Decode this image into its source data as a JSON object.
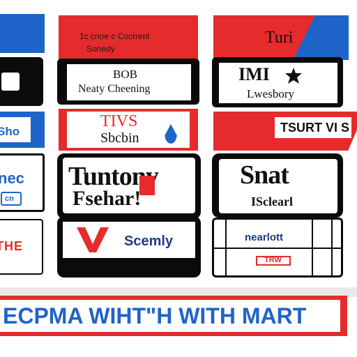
{
  "colors": {
    "red": "#e52b2b",
    "blue": "#1f64c8",
    "black": "#0b0b0b",
    "white": "#ffffff"
  },
  "left_column": {
    "card2_text": "Sho",
    "card3_text": "nec",
    "card3_small": "cn",
    "card4_text": "THE"
  },
  "mid_column": {
    "card1_line1": "1c cnoe c Cocrrenl",
    "card1_line2": "Sonedy",
    "card2_line1": "BOB",
    "card2_line2": "Neaty Cheening",
    "card3_line1": "TIVS",
    "card3_line2": "Sbcbin",
    "card4_line1": "Tuntony",
    "card4_line2": "Fsehar!",
    "card5_text": "Scemly"
  },
  "right_column": {
    "card1_text": "Turi",
    "card2_line1": "IMI",
    "card2_line2": "Lwesbory",
    "card3_text": "TSURT VI S",
    "card4_line1": "Snat",
    "card4_line2": "ISclearl",
    "card5_line1": "nearlott",
    "card5_line2": "TRW"
  },
  "banner": {
    "text": "ECPMA WIHT\"H WITH MART"
  },
  "icons": {
    "mid_logo": "v-logo-icon",
    "right_logo": "star-logo-icon",
    "drop_logo": "flame-icon"
  }
}
